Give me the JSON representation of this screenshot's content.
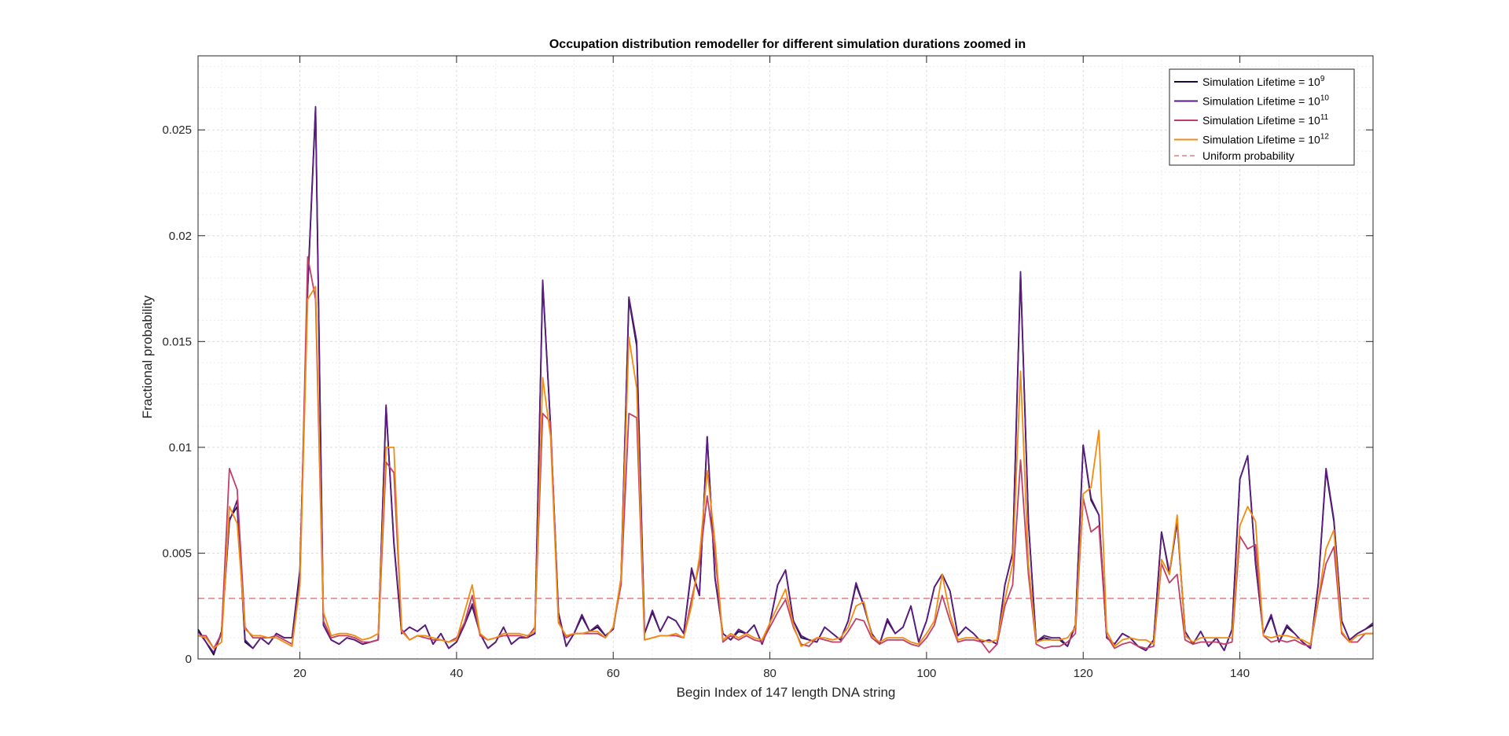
{
  "chart_data": {
    "type": "line",
    "title": "Occupation distribution remodeller for different simulation durations zoomed in",
    "xlabel": "Begin Index of 147 length DNA string",
    "ylabel": "Fractional probability",
    "xlim": [
      7,
      157
    ],
    "ylim": [
      0,
      0.0285
    ],
    "xticks": [
      20,
      40,
      60,
      80,
      100,
      120,
      140
    ],
    "xtick_labels": [
      "20",
      "40",
      "60",
      "80",
      "100",
      "120",
      "140"
    ],
    "yticks": [
      0,
      0.005,
      0.01,
      0.015,
      0.02,
      0.025
    ],
    "ytick_labels": [
      "0",
      "0.005",
      "0.01",
      "0.015",
      "0.02",
      "0.025"
    ],
    "grid": true,
    "minor_grid": true,
    "legend_position": "top-right",
    "x": [
      7,
      8,
      9,
      10,
      11,
      12,
      13,
      14,
      15,
      16,
      17,
      18,
      19,
      20,
      21,
      22,
      23,
      24,
      25,
      26,
      27,
      28,
      29,
      30,
      31,
      32,
      33,
      34,
      35,
      36,
      37,
      38,
      39,
      40,
      41,
      42,
      43,
      44,
      45,
      46,
      47,
      48,
      49,
      50,
      51,
      52,
      53,
      54,
      55,
      56,
      57,
      58,
      59,
      60,
      61,
      62,
      63,
      64,
      65,
      66,
      67,
      68,
      69,
      70,
      71,
      72,
      73,
      74,
      75,
      76,
      77,
      78,
      79,
      80,
      81,
      82,
      83,
      84,
      85,
      86,
      87,
      88,
      89,
      90,
      91,
      92,
      93,
      94,
      95,
      96,
      97,
      98,
      99,
      100,
      101,
      102,
      103,
      104,
      105,
      106,
      107,
      108,
      109,
      110,
      111,
      112,
      113,
      114,
      115,
      116,
      117,
      118,
      119,
      120,
      121,
      122,
      123,
      124,
      125,
      126,
      127,
      128,
      129,
      130,
      131,
      132,
      133,
      134,
      135,
      136,
      137,
      138,
      139,
      140,
      141,
      142,
      143,
      144,
      145,
      146,
      147,
      148,
      149,
      150,
      151,
      152,
      153,
      154,
      155,
      156,
      157
    ],
    "series": [
      {
        "name_base": "Simulation Lifetime = 10",
        "name_exp": "9",
        "color": "#1a0a3a",
        "values": [
          0.0014,
          0.0008,
          0.0002,
          0.0013,
          0.0066,
          0.0072,
          0.0008,
          0.0005,
          0.001,
          0.0007,
          0.0012,
          0.001,
          0.001,
          0.0042,
          0.0175,
          0.026,
          0.0016,
          0.0009,
          0.0007,
          0.001,
          0.0009,
          0.0007,
          0.0008,
          0.0009,
          0.0119,
          0.0055,
          0.0012,
          0.0015,
          0.0013,
          0.0016,
          0.0007,
          0.0012,
          0.0005,
          0.0008,
          0.0016,
          0.0025,
          0.0012,
          0.0005,
          0.0008,
          0.0015,
          0.0007,
          0.001,
          0.001,
          0.0012,
          0.0178,
          0.011,
          0.0022,
          0.0006,
          0.0012,
          0.002,
          0.0013,
          0.0015,
          0.0011,
          0.0014,
          0.0038,
          0.017,
          0.0148,
          0.0012,
          0.0022,
          0.0013,
          0.002,
          0.0018,
          0.0012,
          0.0042,
          0.003,
          0.0105,
          0.0038,
          0.0012,
          0.0009,
          0.0013,
          0.0012,
          0.0016,
          0.0007,
          0.0017,
          0.0035,
          0.0042,
          0.0018,
          0.001,
          0.0009,
          0.0008,
          0.0015,
          0.0012,
          0.0009,
          0.0018,
          0.0035,
          0.0025,
          0.0012,
          0.0007,
          0.0018,
          0.0012,
          0.0015,
          0.0025,
          0.0008,
          0.0018,
          0.0034,
          0.004,
          0.0032,
          0.0011,
          0.0015,
          0.0012,
          0.0008,
          0.0009,
          0.0007,
          0.0035,
          0.005,
          0.0182,
          0.0065,
          0.0008,
          0.001,
          0.0009,
          0.0009,
          0.0006,
          0.0016,
          0.0101,
          0.0075,
          0.0068,
          0.001,
          0.0007,
          0.0012,
          0.001,
          0.0006,
          0.0004,
          0.0009,
          0.006,
          0.004,
          0.0065,
          0.0013,
          0.0007,
          0.0013,
          0.0006,
          0.001,
          0.0004,
          0.0014,
          0.0085,
          0.0096,
          0.0045,
          0.0012,
          0.002,
          0.0008,
          0.0015,
          0.0012,
          0.0008,
          0.0005,
          0.0035,
          0.0089,
          0.0065,
          0.0018,
          0.0009,
          0.0012,
          0.0014,
          0.0016
        ]
      },
      {
        "name_base": "Simulation Lifetime = 10",
        "name_exp": "10",
        "color": "#5a1c80",
        "values": [
          0.0013,
          0.0008,
          0.0003,
          0.0012,
          0.0065,
          0.0075,
          0.0009,
          0.0005,
          0.001,
          0.0007,
          0.0012,
          0.001,
          0.001,
          0.004,
          0.0176,
          0.0261,
          0.0016,
          0.0009,
          0.0007,
          0.001,
          0.0009,
          0.0007,
          0.0008,
          0.0009,
          0.012,
          0.0054,
          0.0012,
          0.0015,
          0.0013,
          0.0016,
          0.0007,
          0.0012,
          0.0005,
          0.0008,
          0.0016,
          0.0026,
          0.0012,
          0.0005,
          0.0008,
          0.0015,
          0.0007,
          0.001,
          0.001,
          0.0012,
          0.0179,
          0.011,
          0.0022,
          0.0006,
          0.0012,
          0.0021,
          0.0013,
          0.0016,
          0.0011,
          0.0014,
          0.0038,
          0.0171,
          0.015,
          0.0012,
          0.0023,
          0.0013,
          0.002,
          0.0018,
          0.0012,
          0.0043,
          0.003,
          0.0105,
          0.0038,
          0.0012,
          0.0009,
          0.0014,
          0.0012,
          0.0016,
          0.0007,
          0.0017,
          0.0035,
          0.0042,
          0.0018,
          0.0011,
          0.0009,
          0.0008,
          0.0015,
          0.0012,
          0.0009,
          0.0018,
          0.0036,
          0.0025,
          0.0012,
          0.0007,
          0.0019,
          0.0012,
          0.0015,
          0.0025,
          0.0008,
          0.0018,
          0.0034,
          0.004,
          0.0032,
          0.0011,
          0.0015,
          0.0012,
          0.0008,
          0.0009,
          0.0007,
          0.0035,
          0.005,
          0.0183,
          0.0065,
          0.0008,
          0.0011,
          0.001,
          0.001,
          0.0006,
          0.0016,
          0.0101,
          0.0076,
          0.0068,
          0.001,
          0.0007,
          0.0012,
          0.001,
          0.0006,
          0.0004,
          0.0009,
          0.006,
          0.0041,
          0.0065,
          0.0013,
          0.0007,
          0.0013,
          0.0006,
          0.001,
          0.0004,
          0.0014,
          0.0085,
          0.0096,
          0.0045,
          0.0012,
          0.0021,
          0.0008,
          0.0016,
          0.0012,
          0.0008,
          0.0005,
          0.0035,
          0.009,
          0.0066,
          0.0018,
          0.0009,
          0.0012,
          0.0014,
          0.0017
        ]
      },
      {
        "name_base": "Simulation Lifetime = 10",
        "name_exp": "11",
        "color": "#c0406a",
        "values": [
          0.0011,
          0.0011,
          0.0005,
          0.0012,
          0.009,
          0.008,
          0.0015,
          0.001,
          0.001,
          0.001,
          0.0011,
          0.0009,
          0.0007,
          0.0035,
          0.019,
          0.017,
          0.0018,
          0.001,
          0.0011,
          0.0011,
          0.001,
          0.0008,
          0.0008,
          0.0009,
          0.0093,
          0.0088,
          0.0014,
          0.0009,
          0.0011,
          0.001,
          0.0009,
          0.0009,
          0.0008,
          0.001,
          0.0017,
          0.003,
          0.0011,
          0.0009,
          0.001,
          0.0011,
          0.0011,
          0.0011,
          0.001,
          0.0015,
          0.0116,
          0.0112,
          0.0018,
          0.001,
          0.0012,
          0.0012,
          0.0012,
          0.0012,
          0.001,
          0.0015,
          0.0035,
          0.0116,
          0.0114,
          0.0009,
          0.001,
          0.0011,
          0.0011,
          0.0011,
          0.001,
          0.0028,
          0.0045,
          0.0077,
          0.005,
          0.0008,
          0.0011,
          0.0009,
          0.0011,
          0.0009,
          0.0008,
          0.0015,
          0.0022,
          0.0028,
          0.0015,
          0.0007,
          0.0006,
          0.001,
          0.0009,
          0.0008,
          0.0008,
          0.0013,
          0.0019,
          0.0018,
          0.001,
          0.0007,
          0.0009,
          0.0009,
          0.0009,
          0.0007,
          0.0006,
          0.001,
          0.0016,
          0.003,
          0.0018,
          0.0008,
          0.0009,
          0.0009,
          0.0008,
          0.0003,
          0.0007,
          0.0025,
          0.0035,
          0.0094,
          0.004,
          0.0007,
          0.0005,
          0.0006,
          0.0006,
          0.0008,
          0.0012,
          0.0076,
          0.006,
          0.0063,
          0.0011,
          0.0005,
          0.0007,
          0.0008,
          0.0006,
          0.0005,
          0.0006,
          0.0045,
          0.0036,
          0.004,
          0.0009,
          0.0007,
          0.0008,
          0.0008,
          0.0008,
          0.0007,
          0.0008,
          0.0058,
          0.0052,
          0.0054,
          0.0011,
          0.0008,
          0.0009,
          0.0008,
          0.0009,
          0.0007,
          0.0006,
          0.0027,
          0.0045,
          0.0053,
          0.0012,
          0.0008,
          0.0008,
          0.0012,
          0.0012
        ]
      },
      {
        "name_base": "Simulation Lifetime = 10",
        "name_exp": "12",
        "color": "#f28c10",
        "values": [
          0.0011,
          0.001,
          0.0005,
          0.0008,
          0.0072,
          0.0064,
          0.0014,
          0.0011,
          0.0011,
          0.001,
          0.001,
          0.0008,
          0.0006,
          0.0035,
          0.017,
          0.0176,
          0.0022,
          0.0011,
          0.0012,
          0.0012,
          0.0011,
          0.0009,
          0.001,
          0.0012,
          0.01,
          0.01,
          0.0013,
          0.0009,
          0.0011,
          0.0011,
          0.001,
          0.0009,
          0.0008,
          0.0009,
          0.0022,
          0.0035,
          0.0012,
          0.0009,
          0.001,
          0.0012,
          0.0012,
          0.0012,
          0.0011,
          0.0013,
          0.0133,
          0.0105,
          0.0017,
          0.0011,
          0.0012,
          0.0012,
          0.0013,
          0.0013,
          0.001,
          0.0015,
          0.0038,
          0.0152,
          0.0128,
          0.0009,
          0.001,
          0.0011,
          0.0011,
          0.0012,
          0.001,
          0.0025,
          0.0048,
          0.0089,
          0.0055,
          0.0009,
          0.0012,
          0.001,
          0.0012,
          0.001,
          0.0009,
          0.0017,
          0.0025,
          0.0033,
          0.0016,
          0.0006,
          0.0008,
          0.001,
          0.001,
          0.0009,
          0.001,
          0.0015,
          0.0025,
          0.0027,
          0.0011,
          0.0008,
          0.001,
          0.001,
          0.001,
          0.0008,
          0.0007,
          0.0012,
          0.0018,
          0.004,
          0.0021,
          0.0009,
          0.001,
          0.001,
          0.0009,
          0.0008,
          0.0009,
          0.0028,
          0.0045,
          0.0136,
          0.0045,
          0.0008,
          0.0009,
          0.0009,
          0.0009,
          0.001,
          0.0015,
          0.0078,
          0.0081,
          0.0108,
          0.0013,
          0.0006,
          0.0009,
          0.001,
          0.0009,
          0.0009,
          0.0007,
          0.0047,
          0.004,
          0.0068,
          0.0011,
          0.0008,
          0.001,
          0.001,
          0.001,
          0.001,
          0.001,
          0.0063,
          0.0072,
          0.0065,
          0.0011,
          0.001,
          0.0011,
          0.0011,
          0.001,
          0.0009,
          0.0007,
          0.0028,
          0.0052,
          0.0061,
          0.0013,
          0.0008,
          0.0011,
          0.0012,
          0.0012
        ]
      }
    ],
    "reference_line": {
      "name": "Uniform probability",
      "value": 0.00286,
      "color": "#e06060",
      "style": "dashed"
    }
  }
}
